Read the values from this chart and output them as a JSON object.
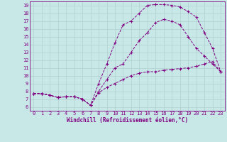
{
  "xlabel": "Windchill (Refroidissement éolien,°C)",
  "bg_color": "#c8e8e8",
  "line_color": "#800080",
  "grid_color": "#b0d0d0",
  "xlim": [
    -0.5,
    23.5
  ],
  "ylim": [
    5.5,
    19.5
  ],
  "xticks": [
    0,
    1,
    2,
    3,
    4,
    5,
    6,
    7,
    8,
    9,
    10,
    11,
    12,
    13,
    14,
    15,
    16,
    17,
    18,
    19,
    20,
    21,
    22,
    23
  ],
  "yticks": [
    6,
    7,
    8,
    9,
    10,
    11,
    12,
    13,
    14,
    15,
    16,
    17,
    18,
    19
  ],
  "curve1_x": [
    0,
    1,
    2,
    3,
    4,
    5,
    6,
    7,
    8,
    9,
    10,
    11,
    12,
    13,
    14,
    15,
    16,
    17,
    18,
    19,
    20,
    21,
    22,
    23
  ],
  "curve1_y": [
    7.7,
    7.7,
    7.5,
    7.2,
    7.3,
    7.3,
    7.0,
    6.2,
    8.0,
    9.5,
    11.0,
    11.5,
    13.0,
    14.5,
    15.5,
    16.8,
    17.2,
    17.0,
    16.5,
    15.0,
    13.5,
    12.5,
    11.5,
    10.5
  ],
  "curve2_x": [
    0,
    1,
    2,
    3,
    4,
    5,
    6,
    7,
    8,
    9,
    10,
    11,
    12,
    13,
    14,
    15,
    16,
    17,
    18,
    19,
    20,
    21,
    22,
    23
  ],
  "curve2_y": [
    7.7,
    7.7,
    7.5,
    7.2,
    7.3,
    7.3,
    7.0,
    6.2,
    9.0,
    11.5,
    14.2,
    16.5,
    17.0,
    18.0,
    19.0,
    19.1,
    19.1,
    19.0,
    18.8,
    18.2,
    17.5,
    15.5,
    13.5,
    10.5
  ],
  "curve3_x": [
    0,
    1,
    2,
    3,
    4,
    5,
    6,
    7,
    8,
    9,
    10,
    11,
    12,
    13,
    14,
    15,
    16,
    17,
    18,
    19,
    20,
    21,
    22,
    23
  ],
  "curve3_y": [
    7.7,
    7.7,
    7.5,
    7.2,
    7.3,
    7.3,
    7.0,
    6.2,
    7.8,
    8.5,
    9.0,
    9.5,
    10.0,
    10.3,
    10.5,
    10.5,
    10.7,
    10.8,
    10.9,
    11.0,
    11.2,
    11.5,
    11.8,
    10.5
  ],
  "tick_fontsize": 5,
  "xlabel_fontsize": 5.5
}
